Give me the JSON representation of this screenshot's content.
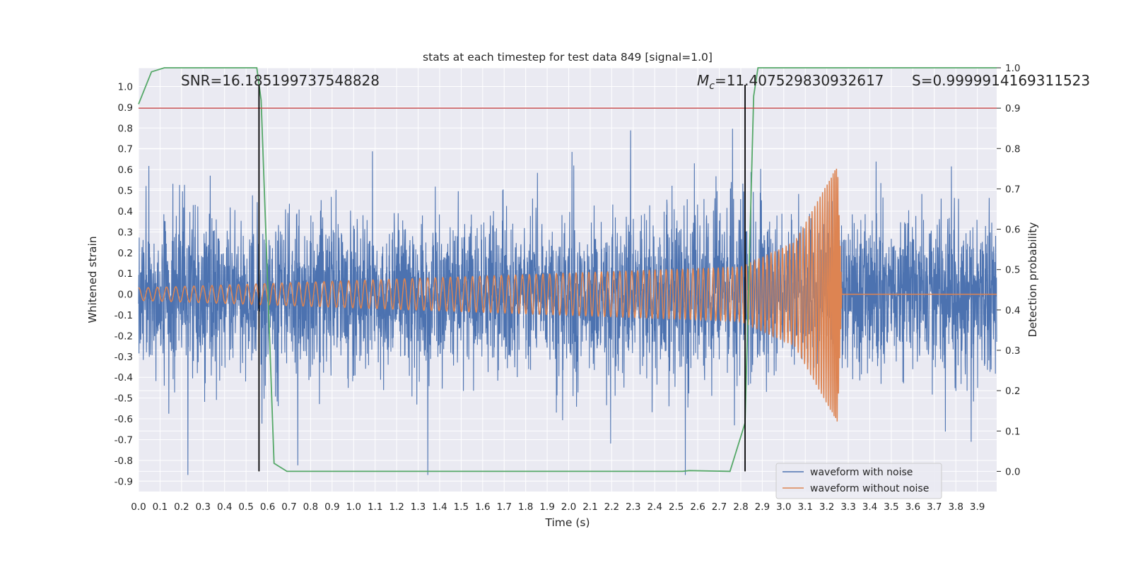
{
  "chart_data": {
    "type": "line",
    "title": "stats at each timestep for test data 849 [signal=1.0]",
    "xlabel": "Time (s)",
    "ylabel": "Whitened strain",
    "y2label": "Detection probability",
    "xlim": [
      0.0,
      3.99
    ],
    "ylim": [
      -0.95,
      1.09
    ],
    "y2lim": [
      -0.05,
      1.0
    ],
    "x_ticks": [
      "0.0",
      "0.1",
      "0.2",
      "0.3",
      "0.4",
      "0.5",
      "0.6",
      "0.7",
      "0.8",
      "0.9",
      "1.0",
      "1.1",
      "1.2",
      "1.3",
      "1.4",
      "1.5",
      "1.6",
      "1.7",
      "1.8",
      "1.9",
      "2.0",
      "2.1",
      "2.2",
      "2.3",
      "2.4",
      "2.5",
      "2.6",
      "2.7",
      "2.8",
      "2.9",
      "3.0",
      "3.1",
      "3.2",
      "3.3",
      "3.4",
      "3.5",
      "3.6",
      "3.7",
      "3.8",
      "3.9"
    ],
    "y_ticks": [
      "1.0",
      "0.9",
      "0.8",
      "0.7",
      "0.6",
      "0.5",
      "0.4",
      "0.3",
      "0.2",
      "0.1",
      "0.0",
      "-0.1",
      "-0.2",
      "-0.3",
      "-0.4",
      "-0.5",
      "-0.6",
      "-0.7",
      "-0.8",
      "-0.9"
    ],
    "y2_ticks": [
      "1.0",
      "0.9",
      "0.8",
      "0.7",
      "0.6",
      "0.5",
      "0.4",
      "0.3",
      "0.2",
      "0.1",
      "0.0"
    ],
    "grid": true,
    "legend_position": "lower right",
    "series": [
      {
        "name": "waveform with noise",
        "color": "#4c72b0",
        "kind": "noise",
        "amplitude_range": [
          -0.87,
          1.0
        ]
      },
      {
        "name": "waveform without noise",
        "color": "#dd8452",
        "kind": "chirp",
        "points": [
          {
            "t": 0.0,
            "amp": 0.03
          },
          {
            "t": 2.8,
            "amp": 0.13
          },
          {
            "t": 3.05,
            "amp": 0.25
          },
          {
            "t": 3.25,
            "amp": 0.62
          },
          {
            "t": 3.27,
            "amp": 0.0
          }
        ]
      },
      {
        "name": "detection probability",
        "color": "#55a868",
        "axis": "right",
        "x": [
          0.0,
          0.06,
          0.12,
          0.2,
          0.55,
          0.57,
          0.63,
          0.69,
          0.9,
          2.5,
          2.53,
          2.56,
          2.75,
          2.82,
          2.86,
          2.88,
          3.0,
          3.5,
          3.99
        ],
        "y": [
          0.91,
          0.99,
          1.0,
          1.0,
          1.0,
          0.92,
          0.02,
          0.0,
          0.0,
          0.0,
          0.0,
          0.002,
          0.0,
          0.12,
          0.93,
          1.0,
          1.0,
          1.0,
          1.0
        ]
      }
    ],
    "hlines": [
      {
        "name": "threshold",
        "y2": 0.9,
        "color": "#c44e52"
      }
    ],
    "vlines": [
      {
        "x": 0.56,
        "color": "#000000"
      },
      {
        "x": 2.82,
        "color": "#000000"
      }
    ],
    "annotations": {
      "snr": "SNR=16.185199737548828",
      "mc_symbol": "M",
      "mc_sub": "c",
      "mc_value": "=11.407529830932617",
      "s": "S=0.9999914169311523"
    },
    "legend": [
      "waveform with noise",
      "waveform without noise"
    ]
  }
}
